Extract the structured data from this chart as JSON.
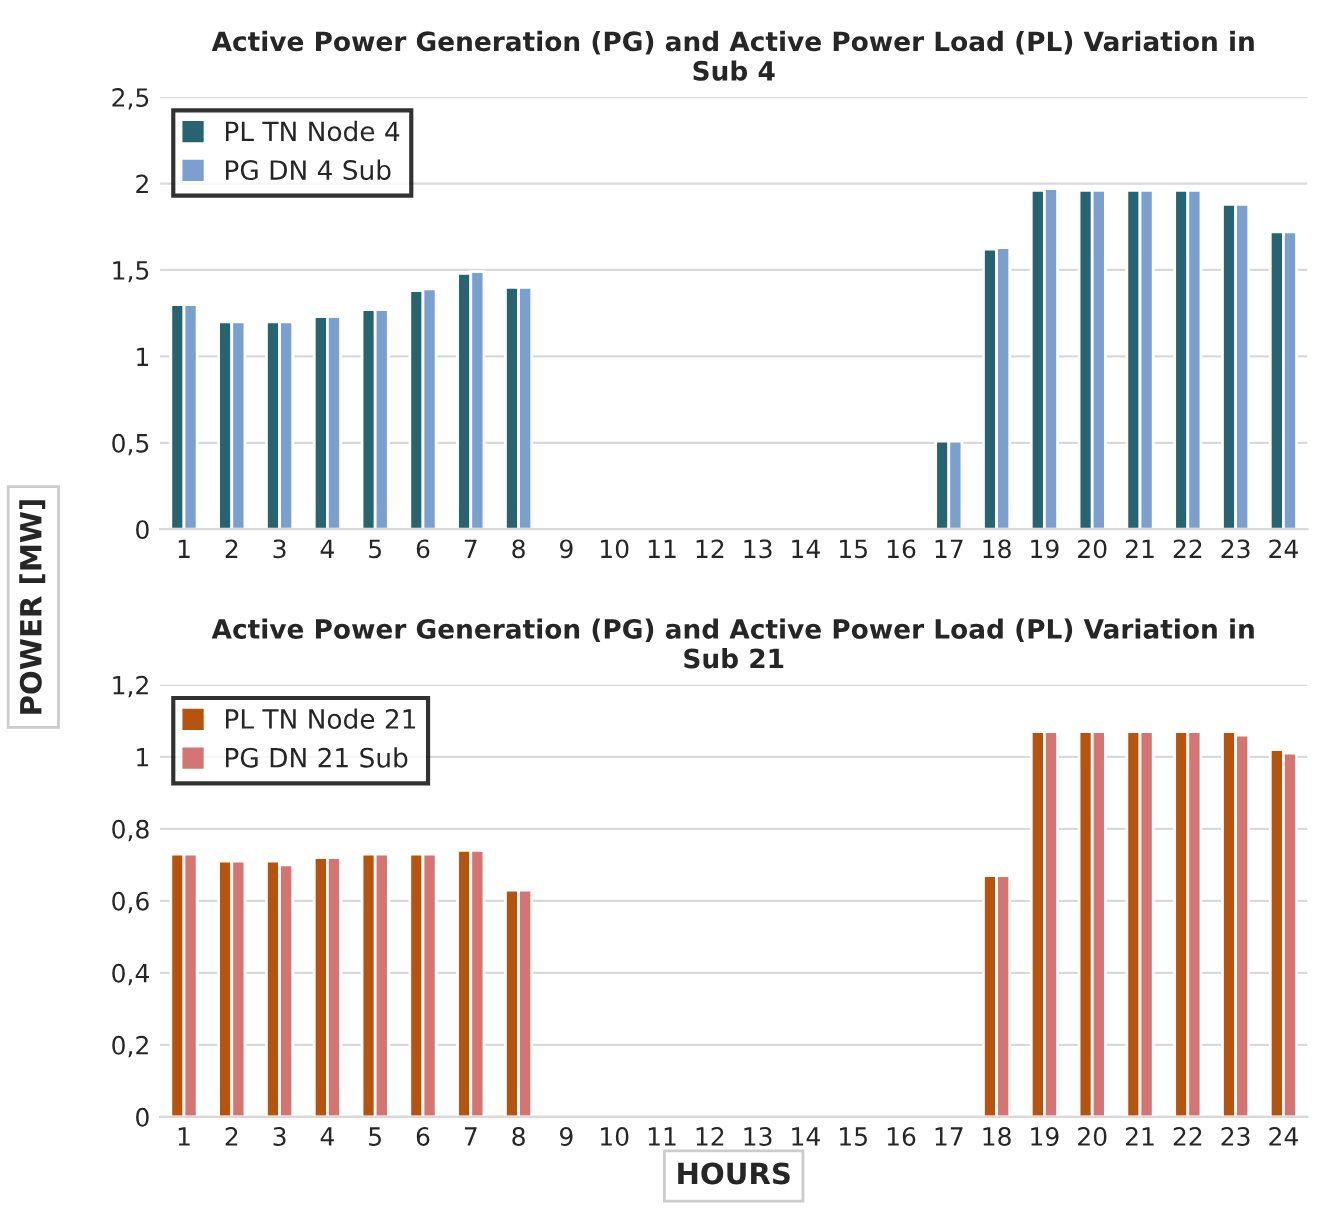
{
  "chart_data": [
    {
      "type": "bar",
      "title": "Active Power Generation (PG) and Active Power Load (PL) Variation in\nSub 4",
      "ylabel": "POWER [MW]",
      "categories": [
        "1",
        "2",
        "3",
        "4",
        "5",
        "6",
        "7",
        "8",
        "9",
        "10",
        "11",
        "12",
        "13",
        "14",
        "15",
        "16",
        "17",
        "18",
        "19",
        "20",
        "21",
        "22",
        "23",
        "24"
      ],
      "series": [
        {
          "name": "PL TN Node 4",
          "color": "#27646f",
          "values": [
            1.3,
            1.2,
            1.2,
            1.23,
            1.27,
            1.38,
            1.48,
            1.4,
            null,
            null,
            null,
            null,
            null,
            null,
            null,
            null,
            0.51,
            1.62,
            1.96,
            1.96,
            1.96,
            1.96,
            1.88,
            1.72
          ]
        },
        {
          "name": "PG DN 4 Sub",
          "color": "#7ba0cf",
          "values": [
            1.3,
            1.2,
            1.2,
            1.23,
            1.27,
            1.39,
            1.49,
            1.4,
            null,
            null,
            null,
            null,
            null,
            null,
            null,
            null,
            0.51,
            1.63,
            1.97,
            1.96,
            1.96,
            1.96,
            1.88,
            1.72
          ]
        }
      ],
      "ylim": [
        0,
        2.5
      ],
      "yticks": [
        {
          "value": 0,
          "label": "0"
        },
        {
          "value": 0.5,
          "label": "0,5"
        },
        {
          "value": 1,
          "label": "1"
        },
        {
          "value": 1.5,
          "label": "1,5"
        },
        {
          "value": 2,
          "label": "2"
        },
        {
          "value": 2.5,
          "label": "2,5"
        }
      ],
      "grid": "y",
      "legend": "top left"
    },
    {
      "type": "bar",
      "title": "Active Power Generation (PG) and Active Power Load (PL) Variation in\nSub 21",
      "xlabel": "HOURS",
      "categories": [
        "1",
        "2",
        "3",
        "4",
        "5",
        "6",
        "7",
        "8",
        "9",
        "10",
        "11",
        "12",
        "13",
        "14",
        "15",
        "16",
        "17",
        "18",
        "19",
        "20",
        "21",
        "22",
        "23",
        "24"
      ],
      "series": [
        {
          "name": "PL TN Node 21",
          "color": "#b5530f",
          "values": [
            0.73,
            0.71,
            0.71,
            0.72,
            0.73,
            0.73,
            0.74,
            0.63,
            null,
            null,
            null,
            null,
            null,
            null,
            null,
            null,
            null,
            0.67,
            1.07,
            1.07,
            1.07,
            1.07,
            1.07,
            1.02
          ]
        },
        {
          "name": "PG DN 21 Sub",
          "color": "#d47574",
          "values": [
            0.73,
            0.71,
            0.7,
            0.72,
            0.73,
            0.73,
            0.74,
            0.63,
            null,
            null,
            null,
            null,
            null,
            null,
            null,
            null,
            null,
            0.67,
            1.07,
            1.07,
            1.07,
            1.07,
            1.06,
            1.01
          ]
        }
      ],
      "ylim": [
        0,
        1.2
      ],
      "yticks": [
        {
          "value": 0,
          "label": "0"
        },
        {
          "value": 0.2,
          "label": "0,2"
        },
        {
          "value": 0.4,
          "label": "0,4"
        },
        {
          "value": 0.6,
          "label": "0,6"
        },
        {
          "value": 0.8,
          "label": "0,8"
        },
        {
          "value": 1,
          "label": "1"
        },
        {
          "value": 1.2,
          "label": "1,2"
        }
      ],
      "grid": "y",
      "legend": "top left"
    }
  ]
}
